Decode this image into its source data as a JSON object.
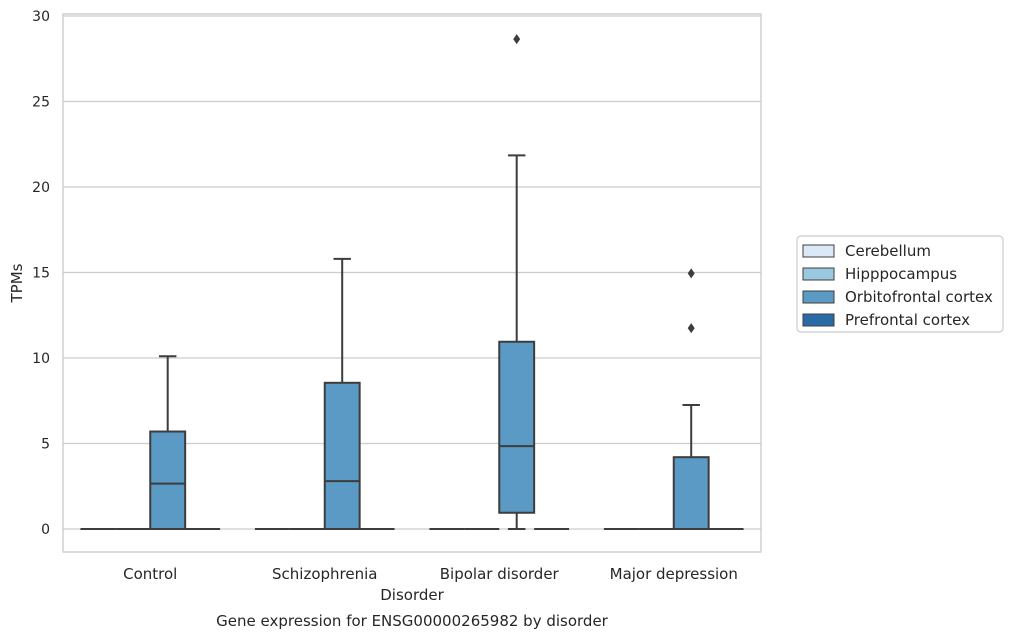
{
  "caption": "Gene expression for ENSG00000265982 by disorder",
  "chart_data": {
    "type": "box",
    "title": "",
    "xlabel": "Disorder",
    "ylabel": "TPMs",
    "ylim": [
      -1.4,
      30.2
    ],
    "yticks": [
      0,
      5,
      10,
      15,
      20,
      25,
      30
    ],
    "grid": "horizontal",
    "legend_position": "right",
    "categories": [
      "Control",
      "Schizophrenia",
      "Bipolar disorder",
      "Major depression"
    ],
    "series": [
      {
        "name": "Cerebellum",
        "color": "#dbe9f6",
        "boxes": [
          {
            "whislo": 0,
            "q1": 0,
            "med": 0,
            "q3": 0,
            "whishi": 0,
            "fliers": []
          },
          {
            "whislo": 0,
            "q1": 0,
            "med": 0,
            "q3": 0,
            "whishi": 0,
            "fliers": []
          },
          {
            "whislo": 0,
            "q1": 0,
            "med": 0,
            "q3": 0,
            "whishi": 0,
            "fliers": []
          },
          {
            "whislo": 0,
            "q1": 0,
            "med": 0,
            "q3": 0,
            "whishi": 0,
            "fliers": []
          }
        ]
      },
      {
        "name": "Hipppocampus",
        "color": "#9ac8e0",
        "boxes": [
          {
            "whislo": 0,
            "q1": 0,
            "med": 0,
            "q3": 0,
            "whishi": 0,
            "fliers": []
          },
          {
            "whislo": 0,
            "q1": 0,
            "med": 0,
            "q3": 0,
            "whishi": 0,
            "fliers": []
          },
          {
            "whislo": 0,
            "q1": 0,
            "med": 0,
            "q3": 0,
            "whishi": 0,
            "fliers": []
          },
          {
            "whislo": 0,
            "q1": 0,
            "med": 0,
            "q3": 0,
            "whishi": 0,
            "fliers": []
          }
        ]
      },
      {
        "name": "Orbitofrontal cortex",
        "color": "#5a9ac4",
        "boxes": [
          {
            "whislo": 0,
            "q1": 0,
            "med": 2.65,
            "q3": 5.7,
            "whishi": 10.1,
            "fliers": []
          },
          {
            "whislo": 0,
            "q1": 0,
            "med": 2.8,
            "q3": 8.55,
            "whishi": 15.8,
            "fliers": []
          },
          {
            "whislo": 0,
            "q1": 0.95,
            "med": 4.85,
            "q3": 10.95,
            "whishi": 21.85,
            "fliers": [
              28.65
            ]
          },
          {
            "whislo": 0,
            "q1": 0,
            "med": 0,
            "q3": 4.2,
            "whishi": 7.25,
            "fliers": [
              11.75,
              14.95
            ]
          }
        ]
      },
      {
        "name": "Prefrontal cortex",
        "color": "#2a6aa6",
        "boxes": [
          {
            "whislo": 0,
            "q1": 0,
            "med": 0,
            "q3": 0,
            "whishi": 0,
            "fliers": []
          },
          {
            "whislo": 0,
            "q1": 0,
            "med": 0,
            "q3": 0,
            "whishi": 0,
            "fliers": []
          },
          {
            "whislo": 0,
            "q1": 0,
            "med": 0,
            "q3": 0,
            "whishi": 0,
            "fliers": []
          },
          {
            "whislo": 0,
            "q1": 0,
            "med": 0,
            "q3": 0,
            "whishi": 0,
            "fliers": []
          }
        ]
      }
    ]
  }
}
